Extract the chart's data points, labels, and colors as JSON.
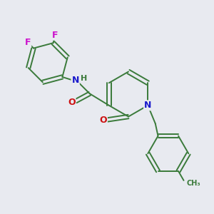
{
  "background_color": "#e8eaf0",
  "bond_color": "#3a7a3a",
  "atom_colors": {
    "N": "#1a1acc",
    "O": "#cc1111",
    "F": "#cc11cc",
    "H": "#3a7a3a",
    "C": "#3a7a3a"
  },
  "figsize": [
    3.0,
    3.0
  ],
  "dpi": 100
}
